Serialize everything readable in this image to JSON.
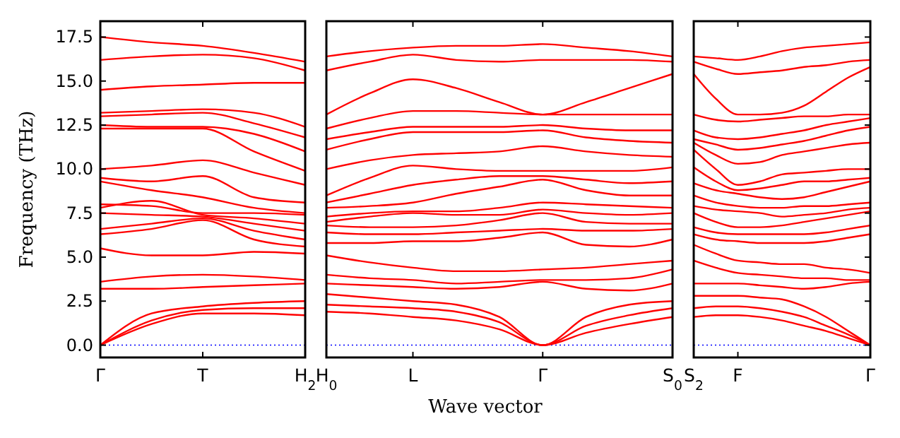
{
  "chart_data": [
    {
      "type": "line",
      "ylabel": "Frequency (THz)",
      "categories": [
        "Γ",
        null,
        "T",
        null,
        "H$_{2}$"
      ],
      "ylim": [
        -0.7,
        18.4
      ],
      "yticks": [
        {
          "value": 0,
          "label": "0.0"
        },
        {
          "value": 2.5,
          "label": "2.5"
        },
        {
          "value": 5,
          "label": "5.0"
        },
        {
          "value": 7.5,
          "label": "7.5"
        },
        {
          "value": 10,
          "label": "10.0"
        },
        {
          "value": 12.5,
          "label": "12.5"
        },
        {
          "value": 15,
          "label": "15.0"
        },
        {
          "value": 17.5,
          "label": "17.5"
        }
      ],
      "ref_lines": [
        {
          "axis": "y",
          "value": 0,
          "color": "#0000ff",
          "line_style": "dotted"
        }
      ],
      "series": [
        {
          "color": "#ff0000",
          "values": [
            0,
            1.2,
            1.8,
            1.8,
            1.7
          ]
        },
        {
          "color": "#ff0000",
          "values": [
            0,
            1.4,
            2.0,
            2.1,
            2.1
          ]
        },
        {
          "color": "#ff0000",
          "values": [
            0,
            1.8,
            2.2,
            2.4,
            2.5
          ]
        },
        {
          "color": "#ff0000",
          "values": [
            3.2,
            3.2,
            3.3,
            3.4,
            3.5
          ]
        },
        {
          "color": "#ff0000",
          "values": [
            3.6,
            3.9,
            4.0,
            3.9,
            3.7
          ]
        },
        {
          "color": "#ff0000",
          "values": [
            5.5,
            5.1,
            5.1,
            5.3,
            5.2
          ]
        },
        {
          "color": "#ff0000",
          "values": [
            6.3,
            6.6,
            7.1,
            6.0,
            5.6
          ]
        },
        {
          "color": "#ff0000",
          "values": [
            6.6,
            6.9,
            7.2,
            6.5,
            6.0
          ]
        },
        {
          "color": "#ff0000",
          "values": [
            7.5,
            7.4,
            7.3,
            6.9,
            6.5
          ]
        },
        {
          "color": "#ff0000",
          "values": [
            7.8,
            8.2,
            7.4,
            7.2,
            6.9
          ]
        },
        {
          "color": "#ff0000",
          "values": [
            8.0,
            7.9,
            7.5,
            7.5,
            7.4
          ]
        },
        {
          "color": "#ff0000",
          "values": [
            9.3,
            8.8,
            8.4,
            7.8,
            7.5
          ]
        },
        {
          "color": "#ff0000",
          "values": [
            9.5,
            9.3,
            9.6,
            8.4,
            8.1
          ]
        },
        {
          "color": "#ff0000",
          "values": [
            10.0,
            10.2,
            10.5,
            9.8,
            9.1
          ]
        },
        {
          "color": "#ff0000",
          "values": [
            12.3,
            12.3,
            12.3,
            11.0,
            9.9
          ]
        },
        {
          "color": "#ff0000",
          "values": [
            12.5,
            12.4,
            12.4,
            12.0,
            11.0
          ]
        },
        {
          "color": "#ff0000",
          "values": [
            13.0,
            13.1,
            13.2,
            12.6,
            11.8
          ]
        },
        {
          "color": "#ff0000",
          "values": [
            13.2,
            13.3,
            13.4,
            13.2,
            12.4
          ]
        },
        {
          "color": "#ff0000",
          "values": [
            14.5,
            14.7,
            14.8,
            14.9,
            14.9
          ]
        },
        {
          "color": "#ff0000",
          "values": [
            16.2,
            16.4,
            16.5,
            16.3,
            15.6
          ]
        },
        {
          "color": "#ff0000",
          "values": [
            17.5,
            17.2,
            17.0,
            16.6,
            16.1
          ]
        }
      ]
    },
    {
      "type": "line",
      "xlabel": "Wave vector",
      "tick_labels": "x",
      "categories": [
        "H$_{0}$",
        null,
        "L",
        null,
        null,
        "Γ",
        null,
        null,
        "S$_{0}$"
      ],
      "ylim": [
        -0.7,
        18.4
      ],
      "ref_lines": [
        {
          "axis": "y",
          "value": 0,
          "color": "#0000ff",
          "line_style": "dotted"
        }
      ],
      "series": [
        {
          "color": "#ff0000",
          "values": [
            1.9,
            1.8,
            1.6,
            1.4,
            0.9,
            0,
            0.7,
            1.2,
            1.6
          ]
        },
        {
          "color": "#ff0000",
          "values": [
            2.3,
            2.2,
            2.1,
            1.9,
            1.3,
            0,
            1.1,
            1.7,
            2.1
          ]
        },
        {
          "color": "#ff0000",
          "values": [
            2.9,
            2.7,
            2.5,
            2.3,
            1.6,
            0,
            1.6,
            2.3,
            2.5
          ]
        },
        {
          "color": "#ff0000",
          "values": [
            3.5,
            3.4,
            3.3,
            3.2,
            3.3,
            3.6,
            3.2,
            3.1,
            3.5
          ]
        },
        {
          "color": "#ff0000",
          "values": [
            4.0,
            3.8,
            3.7,
            3.5,
            3.6,
            3.7,
            3.7,
            3.8,
            4.3
          ]
        },
        {
          "color": "#ff0000",
          "values": [
            5.1,
            4.7,
            4.4,
            4.2,
            4.2,
            4.3,
            4.4,
            4.6,
            4.8
          ]
        },
        {
          "color": "#ff0000",
          "values": [
            5.8,
            5.8,
            5.9,
            5.9,
            6.1,
            6.4,
            5.7,
            5.6,
            6.0
          ]
        },
        {
          "color": "#ff0000",
          "values": [
            6.4,
            6.3,
            6.3,
            6.4,
            6.5,
            6.6,
            6.5,
            6.5,
            6.6
          ]
        },
        {
          "color": "#ff0000",
          "values": [
            6.8,
            6.7,
            6.7,
            6.8,
            7.1,
            7.5,
            7.0,
            6.9,
            6.9
          ]
        },
        {
          "color": "#ff0000",
          "values": [
            7.0,
            7.3,
            7.5,
            7.4,
            7.4,
            7.7,
            7.5,
            7.4,
            7.5
          ]
        },
        {
          "color": "#ff0000",
          "values": [
            7.3,
            7.5,
            7.6,
            7.6,
            7.8,
            8.1,
            8.0,
            7.9,
            7.8
          ]
        },
        {
          "color": "#ff0000",
          "values": [
            7.8,
            7.9,
            8.1,
            8.6,
            9.0,
            9.4,
            8.8,
            8.5,
            8.5
          ]
        },
        {
          "color": "#ff0000",
          "values": [
            8.1,
            8.6,
            9.1,
            9.4,
            9.6,
            9.6,
            9.4,
            9.2,
            9.3
          ]
        },
        {
          "color": "#ff0000",
          "values": [
            8.5,
            9.5,
            10.2,
            10.0,
            9.9,
            9.9,
            9.9,
            9.9,
            10.1
          ]
        },
        {
          "color": "#ff0000",
          "values": [
            10.0,
            10.5,
            10.8,
            10.9,
            11.0,
            11.3,
            11.0,
            10.8,
            10.7
          ]
        },
        {
          "color": "#ff0000",
          "values": [
            11.1,
            11.7,
            12.1,
            12.1,
            12.1,
            12.2,
            11.8,
            11.6,
            11.5
          ]
        },
        {
          "color": "#ff0000",
          "values": [
            11.7,
            12.1,
            12.4,
            12.4,
            12.4,
            12.5,
            12.3,
            12.2,
            12.2
          ]
        },
        {
          "color": "#ff0000",
          "values": [
            12.3,
            12.9,
            13.3,
            13.3,
            13.2,
            13.1,
            13.1,
            13.1,
            13.1
          ]
        },
        {
          "color": "#ff0000",
          "values": [
            13.1,
            14.3,
            15.1,
            14.6,
            13.8,
            13.1,
            13.8,
            14.6,
            15.4
          ]
        },
        {
          "color": "#ff0000",
          "values": [
            15.6,
            16.1,
            16.5,
            16.2,
            16.1,
            16.2,
            16.2,
            16.2,
            16.1
          ]
        },
        {
          "color": "#ff0000",
          "values": [
            16.4,
            16.7,
            16.9,
            17.0,
            17.0,
            17.1,
            16.9,
            16.7,
            16.4
          ]
        }
      ]
    },
    {
      "type": "line",
      "tick_labels": "x",
      "categories": [
        "S$_{2}$",
        null,
        "F",
        null,
        null,
        null,
        null,
        null,
        "Γ"
      ],
      "ylim": [
        -0.7,
        18.4
      ],
      "yticks": [
        0,
        2.5,
        5,
        7.5,
        10,
        12.5,
        15,
        17.5
      ],
      "ref_lines": [
        {
          "axis": "y",
          "value": 0,
          "color": "#0000ff",
          "line_style": "dotted"
        }
      ],
      "series": [
        {
          "color": "#ff0000",
          "values": [
            1.6,
            1.7,
            1.7,
            1.6,
            1.4,
            1.1,
            0.8,
            0.4,
            0
          ]
        },
        {
          "color": "#ff0000",
          "values": [
            2.1,
            2.2,
            2.2,
            2.1,
            1.9,
            1.6,
            1.1,
            0.6,
            0
          ]
        },
        {
          "color": "#ff0000",
          "values": [
            2.8,
            2.8,
            2.8,
            2.7,
            2.6,
            2.2,
            1.6,
            0.8,
            0
          ]
        },
        {
          "color": "#ff0000",
          "values": [
            3.5,
            3.5,
            3.5,
            3.4,
            3.3,
            3.2,
            3.3,
            3.5,
            3.6
          ]
        },
        {
          "color": "#ff0000",
          "values": [
            4.8,
            4.4,
            4.1,
            4.0,
            3.9,
            3.8,
            3.8,
            3.7,
            3.7
          ]
        },
        {
          "color": "#ff0000",
          "values": [
            5.7,
            5.2,
            4.8,
            4.7,
            4.6,
            4.6,
            4.4,
            4.3,
            4.1
          ]
        },
        {
          "color": "#ff0000",
          "values": [
            6.3,
            6.0,
            5.9,
            5.8,
            5.8,
            5.8,
            5.9,
            6.1,
            6.3
          ]
        },
        {
          "color": "#ff0000",
          "values": [
            6.7,
            6.4,
            6.3,
            6.3,
            6.3,
            6.3,
            6.4,
            6.6,
            6.8
          ]
        },
        {
          "color": "#ff0000",
          "values": [
            7.5,
            7.0,
            6.7,
            6.7,
            6.8,
            7.0,
            7.2,
            7.4,
            7.6
          ]
        },
        {
          "color": "#ff0000",
          "values": [
            7.9,
            7.7,
            7.6,
            7.5,
            7.3,
            7.4,
            7.5,
            7.7,
            7.8
          ]
        },
        {
          "color": "#ff0000",
          "values": [
            8.5,
            8.1,
            7.9,
            7.8,
            7.8,
            7.9,
            7.9,
            8.0,
            8.1
          ]
        },
        {
          "color": "#ff0000",
          "values": [
            9.2,
            8.8,
            8.6,
            8.4,
            8.3,
            8.4,
            8.7,
            9.0,
            9.3
          ]
        },
        {
          "color": "#ff0000",
          "values": [
            10.1,
            9.3,
            8.8,
            8.9,
            9.1,
            9.3,
            9.3,
            9.4,
            9.5
          ]
        },
        {
          "color": "#ff0000",
          "values": [
            11.1,
            10.0,
            9.1,
            9.3,
            9.7,
            9.8,
            9.9,
            10.0,
            10.0
          ]
        },
        {
          "color": "#ff0000",
          "values": [
            11.5,
            10.8,
            10.3,
            10.4,
            10.8,
            11.0,
            11.2,
            11.4,
            11.5
          ]
        },
        {
          "color": "#ff0000",
          "values": [
            11.7,
            11.4,
            11.1,
            11.2,
            11.4,
            11.6,
            11.9,
            12.2,
            12.4
          ]
        },
        {
          "color": "#ff0000",
          "values": [
            12.2,
            11.8,
            11.7,
            11.8,
            12.0,
            12.2,
            12.5,
            12.7,
            12.9
          ]
        },
        {
          "color": "#ff0000",
          "values": [
            13.1,
            12.8,
            12.7,
            12.8,
            12.9,
            13.0,
            13.0,
            13.1,
            13.1
          ]
        },
        {
          "color": "#ff0000",
          "values": [
            15.4,
            14.0,
            13.1,
            13.1,
            13.2,
            13.6,
            14.4,
            15.2,
            15.8
          ]
        },
        {
          "color": "#ff0000",
          "values": [
            16.1,
            15.7,
            15.4,
            15.5,
            15.6,
            15.8,
            15.9,
            16.1,
            16.2
          ]
        },
        {
          "color": "#ff0000",
          "values": [
            16.4,
            16.3,
            16.2,
            16.4,
            16.7,
            16.9,
            17.0,
            17.1,
            17.2
          ]
        }
      ]
    }
  ]
}
